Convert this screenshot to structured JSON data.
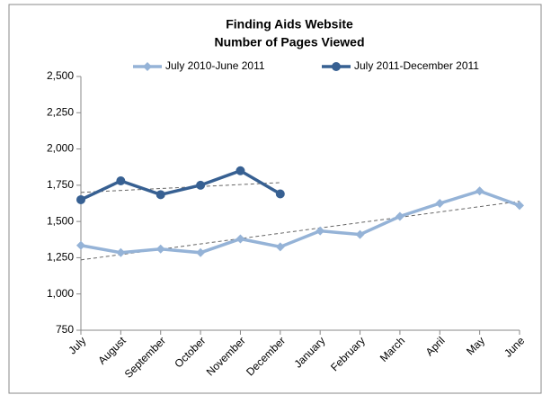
{
  "chart_data": {
    "type": "line",
    "title": "Finding Aids Website",
    "subtitle": "Number of Pages Viewed",
    "categories": [
      "July",
      "August",
      "September",
      "October",
      "November",
      "December",
      "January",
      "February",
      "March",
      "April",
      "May",
      "June"
    ],
    "series": [
      {
        "name": "July 2010-June 2011",
        "color": "#95b3d7",
        "marker": "diamond",
        "values": [
          1335,
          1285,
          1310,
          1285,
          1380,
          1325,
          1435,
          1410,
          1535,
          1625,
          1710,
          1610
        ]
      },
      {
        "name": "July 2011-December 2011",
        "color": "#376092",
        "marker": "circle",
        "values": [
          1650,
          1780,
          1685,
          1750,
          1850,
          1690,
          null,
          null,
          null,
          null,
          null,
          null
        ]
      }
    ],
    "ylim": [
      750,
      2500
    ],
    "yticks": [
      750,
      {
        "value": 1000,
        "label": "1,000"
      },
      {
        "value": 1250,
        "label": "1,250"
      },
      {
        "value": 1500,
        "label": "1,500"
      },
      {
        "value": 1750,
        "label": "1,750"
      },
      {
        "value": 2000,
        "label": "2,000"
      },
      {
        "value": 2250,
        "label": "2,250"
      },
      {
        "value": 2500,
        "label": "2,500"
      }
    ],
    "trendline": true,
    "legend": "top",
    "grid": false
  }
}
